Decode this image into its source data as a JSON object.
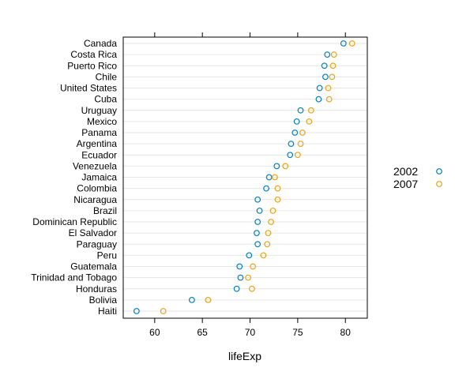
{
  "chart_data": {
    "type": "scatter",
    "xlabel": "lifeExp",
    "xlim": [
      56.7,
      82.3
    ],
    "x_ticks": [
      60,
      65,
      70,
      75,
      80
    ],
    "categories": [
      "Canada",
      "Costa Rica",
      "Puerto Rico",
      "Chile",
      "United States",
      "Cuba",
      "Uruguay",
      "Mexico",
      "Panama",
      "Argentina",
      "Ecuador",
      "Venezuela",
      "Jamaica",
      "Colombia",
      "Nicaragua",
      "Brazil",
      "Dominican Republic",
      "El Salvador",
      "Paraguay",
      "Peru",
      "Guatemala",
      "Trinidad and Tobago",
      "Honduras",
      "Bolivia",
      "Haiti"
    ],
    "series": [
      {
        "name": "2002",
        "color": "#0080c0",
        "values": [
          79.8,
          78.1,
          77.8,
          77.9,
          77.3,
          77.2,
          75.3,
          74.9,
          74.7,
          74.3,
          74.2,
          72.8,
          72.0,
          71.7,
          70.8,
          71.0,
          70.8,
          70.7,
          70.8,
          69.9,
          68.9,
          69.0,
          68.6,
          63.9,
          58.1
        ]
      },
      {
        "name": "2007",
        "color": "#e8a317",
        "values": [
          80.7,
          78.8,
          78.7,
          78.6,
          78.2,
          78.3,
          76.4,
          76.2,
          75.5,
          75.3,
          75.0,
          73.7,
          72.6,
          72.9,
          72.9,
          72.4,
          72.2,
          71.9,
          71.8,
          71.4,
          70.3,
          69.8,
          70.2,
          65.6,
          60.9
        ]
      }
    ],
    "grid": true,
    "legend_position": "right"
  }
}
